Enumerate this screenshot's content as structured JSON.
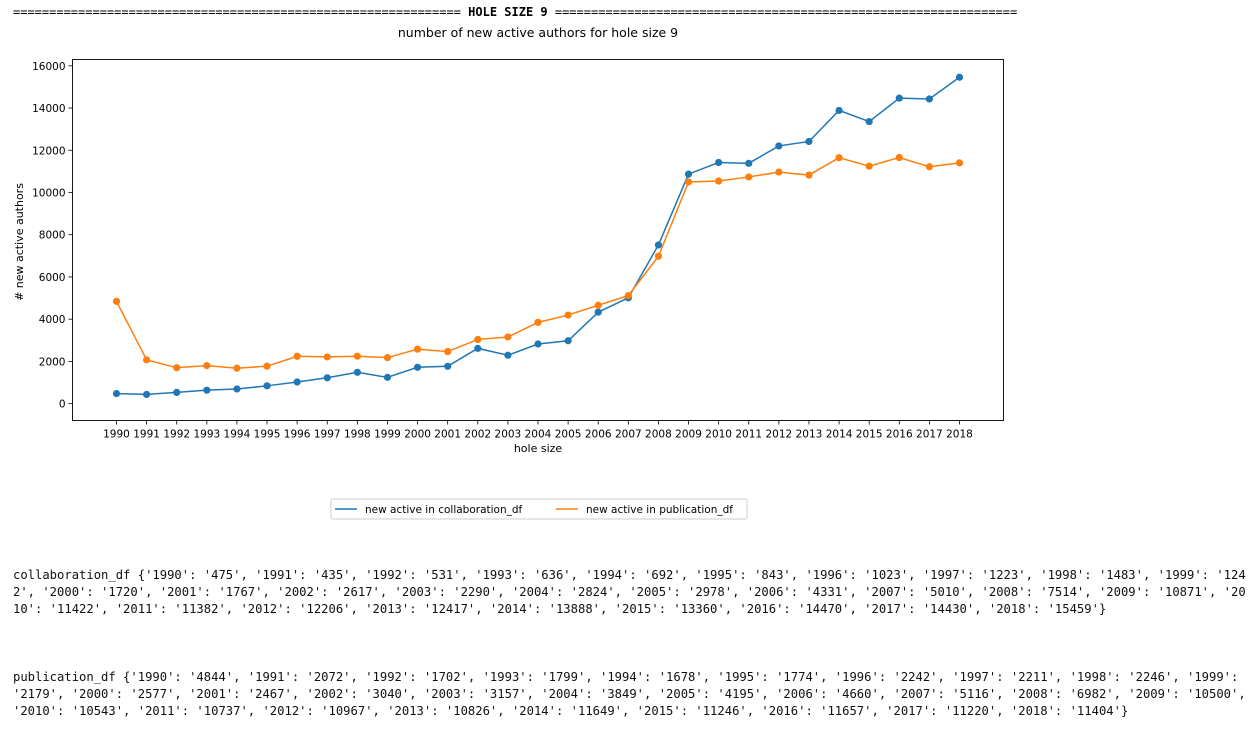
{
  "header": {
    "left_rule": "==============================================================",
    "title": " HOLE SIZE 9 ",
    "right_rule": "================================================================"
  },
  "chart_data": {
    "type": "line",
    "title": "number of new active authors for hole size 9",
    "xlabel": "hole size",
    "ylabel": "# new active authors",
    "categories": [
      "1990",
      "1991",
      "1992",
      "1993",
      "1994",
      "1995",
      "1996",
      "1997",
      "1998",
      "1999",
      "2000",
      "2001",
      "2002",
      "2003",
      "2004",
      "2005",
      "2006",
      "2007",
      "2008",
      "2009",
      "2010",
      "2011",
      "2012",
      "2013",
      "2014",
      "2015",
      "2016",
      "2017",
      "2018"
    ],
    "yticks": [
      0,
      2000,
      4000,
      6000,
      8000,
      10000,
      12000,
      14000,
      16000
    ],
    "ylim": [
      -800,
      16300
    ],
    "grid": false,
    "legend_position": "bottom-center",
    "series": [
      {
        "name": "new active in collaboration_df",
        "color": "#1f77b4",
        "values": [
          475,
          435,
          531,
          636,
          692,
          843,
          1023,
          1223,
          1483,
          1242,
          1720,
          1767,
          2617,
          2290,
          2824,
          2978,
          4331,
          5010,
          7514,
          10871,
          11422,
          11382,
          12206,
          12417,
          13888,
          13360,
          14470,
          14430,
          15459
        ]
      },
      {
        "name": "new active in publication_df",
        "color": "#ff7f0e",
        "values": [
          4844,
          2072,
          1702,
          1799,
          1678,
          1774,
          2242,
          2211,
          2246,
          2179,
          2577,
          2467,
          3040,
          3157,
          3849,
          4195,
          4660,
          5116,
          6982,
          10500,
          10543,
          10737,
          10967,
          10826,
          11649,
          11246,
          11657,
          11220,
          11404
        ]
      }
    ]
  },
  "dumps": {
    "collaboration": "collaboration_df {'1990': '475', '1991': '435', '1992': '531', '1993': '636', '1994': '692', '1995': '843', '1996': '1023', '1997': '1223', '1998': '1483', '1999': '1242', '2000': '1720', '2001': '1767', '2002': '2617', '2003': '2290', '2004': '2824', '2005': '2978', '2006': '4331', '2007': '5010', '2008': '7514', '2009': '10871', '2010': '11422', '2011': '11382', '2012': '12206', '2013': '12417', '2014': '13888', '2015': '13360', '2016': '14470', '2017': '14430', '2018': '15459'}",
    "publication": "publication_df {'1990': '4844', '1991': '2072', '1992': '1702', '1993': '1799', '1994': '1678', '1995': '1774', '1996': '2242', '1997': '2211', '1998': '2246', '1999': '2179', '2000': '2577', '2001': '2467', '2002': '3040', '2003': '3157', '2004': '3849', '2005': '4195', '2006': '4660', '2007': '5116', '2008': '6982', '2009': '10500', '2010': '10543', '2011': '10737', '2012': '10967', '2013': '10826', '2014': '11649', '2015': '11246', '2016': '11657', '2017': '11220', '2018': '11404'}"
  }
}
